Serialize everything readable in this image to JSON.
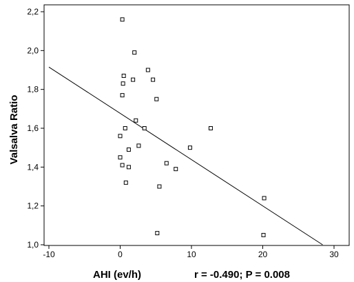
{
  "chart_data": {
    "type": "scatter",
    "xlabel": "AHI (ev/h)",
    "ylabel": "Valsalva Ratio",
    "annotation": "r = -0.490; P = 0.008",
    "xlim": [
      -10,
      30
    ],
    "ylim": [
      1.0,
      2.2
    ],
    "x_ticks": [
      -10,
      0,
      10,
      20,
      30
    ],
    "x_tick_labels": [
      "-10",
      "0",
      "10",
      "20",
      "30"
    ],
    "y_ticks": [
      1.0,
      1.2,
      1.4,
      1.6,
      1.8,
      2.0,
      2.2
    ],
    "y_tick_labels": [
      "1,0",
      "1,2",
      "1,4",
      "1,6",
      "1,8",
      "2,0",
      "2,2"
    ],
    "grid": false,
    "marker": "open-square",
    "series": [
      {
        "points": [
          {
            "x": 0.3,
            "y": 2.16
          },
          {
            "x": 2.0,
            "y": 1.99
          },
          {
            "x": 3.9,
            "y": 1.9
          },
          {
            "x": 0.5,
            "y": 1.87
          },
          {
            "x": 1.8,
            "y": 1.85
          },
          {
            "x": 4.6,
            "y": 1.85
          },
          {
            "x": 0.4,
            "y": 1.83
          },
          {
            "x": 0.3,
            "y": 1.77
          },
          {
            "x": 5.1,
            "y": 1.75
          },
          {
            "x": 2.2,
            "y": 1.64
          },
          {
            "x": 0.7,
            "y": 1.6
          },
          {
            "x": 3.4,
            "y": 1.6
          },
          {
            "x": 12.7,
            "y": 1.6
          },
          {
            "x": 0.0,
            "y": 1.56
          },
          {
            "x": 2.6,
            "y": 1.51
          },
          {
            "x": 1.2,
            "y": 1.49
          },
          {
            "x": 9.8,
            "y": 1.5
          },
          {
            "x": 0.0,
            "y": 1.45
          },
          {
            "x": 6.5,
            "y": 1.42
          },
          {
            "x": 0.3,
            "y": 1.41
          },
          {
            "x": 1.2,
            "y": 1.4
          },
          {
            "x": 7.8,
            "y": 1.39
          },
          {
            "x": 0.8,
            "y": 1.32
          },
          {
            "x": 5.5,
            "y": 1.3
          },
          {
            "x": 20.2,
            "y": 1.24
          },
          {
            "x": 5.2,
            "y": 1.06
          },
          {
            "x": 20.1,
            "y": 1.05
          }
        ]
      }
    ],
    "trendline": {
      "x": [
        -10,
        28.4
      ],
      "y": [
        1.915,
        1.0
      ]
    }
  }
}
